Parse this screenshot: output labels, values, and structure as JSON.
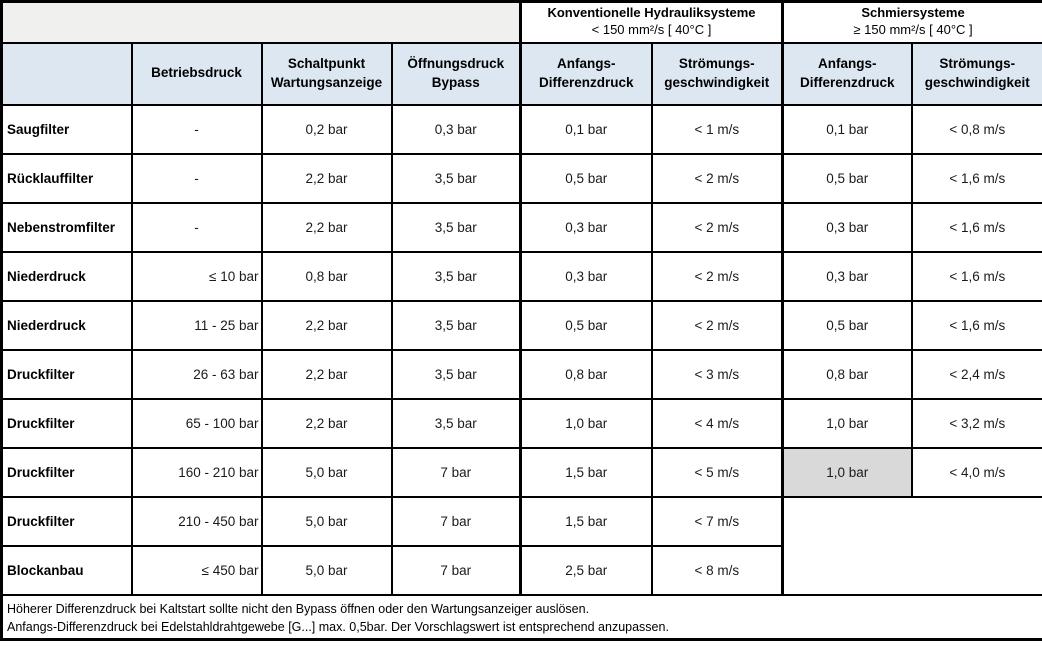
{
  "colors": {
    "header_blue": "#dce7f1",
    "band_gray": "#f0f0ee",
    "highlight_gray": "#d9d9d9",
    "border_black": "#000000"
  },
  "table": {
    "group_headers": [
      {
        "title": "Konventionelle Hydrauliksysteme",
        "subtitle": "< 150 mm²/s [ 40°C ]"
      },
      {
        "title": "Schmiersysteme",
        "subtitle": "≥ 150 mm²/s [ 40°C ]"
      }
    ],
    "column_headers": [
      "Betriebsdruck",
      "Schaltpunkt\nWartungsanzeige",
      "Öffnungsdruck\nBypass",
      "Anfangs-\nDifferenzdruck",
      "Strömungs-\ngeschwindigkeit",
      "Anfangs-\nDifferenzdruck",
      "Strömungs-\ngeschwindigkeit"
    ],
    "rows": [
      {
        "label": "Saugfilter",
        "betriebsdruck": "-",
        "schaltpunkt": "0,2 bar",
        "bypass": "0,3 bar",
        "hyd_dp": "0,1 bar",
        "hyd_v": "< 1 m/s",
        "schmier_dp": "0,1 bar",
        "schmier_v": "< 0,8 m/s"
      },
      {
        "label": "Rücklauffilter",
        "betriebsdruck": "-",
        "schaltpunkt": "2,2 bar",
        "bypass": "3,5 bar",
        "hyd_dp": "0,5 bar",
        "hyd_v": "< 2 m/s",
        "schmier_dp": "0,5 bar",
        "schmier_v": "< 1,6 m/s"
      },
      {
        "label": "Nebenstromfilter",
        "betriebsdruck": "-",
        "schaltpunkt": "2,2 bar",
        "bypass": "3,5 bar",
        "hyd_dp": "0,3 bar",
        "hyd_v": "< 2 m/s",
        "schmier_dp": "0,3 bar",
        "schmier_v": "< 1,6 m/s"
      },
      {
        "label": "Niederdruck",
        "betriebsdruck": "≤ 10 bar",
        "schaltpunkt": "0,8 bar",
        "bypass": "3,5 bar",
        "hyd_dp": "0,3 bar",
        "hyd_v": "< 2 m/s",
        "schmier_dp": "0,3 bar",
        "schmier_v": "< 1,6 m/s"
      },
      {
        "label": "Niederdruck",
        "betriebsdruck": "11 - 25 bar",
        "schaltpunkt": "2,2 bar",
        "bypass": "3,5 bar",
        "hyd_dp": "0,5 bar",
        "hyd_v": "< 2 m/s",
        "schmier_dp": "0,5 bar",
        "schmier_v": "< 1,6 m/s"
      },
      {
        "label": "Druckfilter",
        "betriebsdruck": "26 - 63 bar",
        "schaltpunkt": "2,2 bar",
        "bypass": "3,5 bar",
        "hyd_dp": "0,8 bar",
        "hyd_v": "< 3 m/s",
        "schmier_dp": "0,8 bar",
        "schmier_v": "< 2,4 m/s"
      },
      {
        "label": "Druckfilter",
        "betriebsdruck": "65 - 100 bar",
        "schaltpunkt": "2,2 bar",
        "bypass": "3,5 bar",
        "hyd_dp": "1,0 bar",
        "hyd_v": "< 4 m/s",
        "schmier_dp": "1,0 bar",
        "schmier_v": "< 3,2 m/s"
      },
      {
        "label": "Druckfilter",
        "betriebsdruck": "160 - 210 bar",
        "schaltpunkt": "5,0 bar",
        "bypass": "7 bar",
        "hyd_dp": "1,5 bar",
        "hyd_v": "< 5 m/s",
        "schmier_dp": "1,0 bar",
        "schmier_dp_highlight": true,
        "schmier_v": "< 4,0 m/s"
      },
      {
        "label": "Druckfilter",
        "betriebsdruck": "210 - 450 bar",
        "schaltpunkt": "5,0 bar",
        "bypass": "7 bar",
        "hyd_dp": "1,5 bar",
        "hyd_v": "< 7 m/s",
        "schmier_dp": null,
        "schmier_v": null
      },
      {
        "label": "Blockanbau",
        "betriebsdruck": "≤ 450 bar",
        "schaltpunkt": "5,0 bar",
        "bypass": "7 bar",
        "hyd_dp": "2,5 bar",
        "hyd_v": "< 8 m/s",
        "schmier_dp": null,
        "schmier_v": null
      }
    ],
    "footnotes": [
      "Höherer Differenzdruck bei Kaltstart sollte nicht den Bypass öffnen oder den Wartungsanzeiger auslösen.",
      "Anfangs-Differenzdruck bei Edelstahldrahtgewebe [G...] max. 0,5bar. Der Vorschlagswert ist entsprechend anzupassen."
    ]
  }
}
